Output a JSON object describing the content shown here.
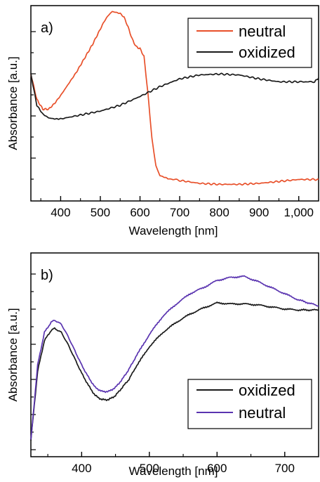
{
  "chart_data": [
    {
      "type": "line",
      "panel_label": "a)",
      "xlabel": "Wavelength [nm]",
      "ylabel": "Absorbance [a.u.]",
      "xlim": [
        325,
        1050
      ],
      "ylim": [
        0,
        1
      ],
      "x_ticks": [
        400,
        500,
        600,
        700,
        800,
        900,
        1000
      ],
      "x_tick_labels": [
        "400",
        "500",
        "600",
        "700",
        "800",
        "900",
        "1,000"
      ],
      "y_tick_labels_shown": false,
      "grid": false,
      "legend_position": "top-right",
      "series": [
        {
          "name": "neutral",
          "color": "#e8502a",
          "x": [
            325,
            340,
            355,
            370,
            385,
            400,
            420,
            440,
            460,
            480,
            500,
            510,
            520,
            530,
            540,
            550,
            560,
            570,
            580,
            590,
            600,
            610,
            620,
            630,
            640,
            650,
            670,
            700,
            750,
            800,
            850,
            900,
            950,
            1000,
            1050
          ],
          "y": [
            0.65,
            0.52,
            0.47,
            0.47,
            0.5,
            0.54,
            0.6,
            0.66,
            0.73,
            0.8,
            0.88,
            0.92,
            0.95,
            0.97,
            0.965,
            0.96,
            0.94,
            0.89,
            0.83,
            0.79,
            0.78,
            0.74,
            0.55,
            0.32,
            0.18,
            0.13,
            0.115,
            0.105,
            0.09,
            0.085,
            0.085,
            0.09,
            0.1,
            0.11,
            0.11
          ]
        },
        {
          "name": "oxidized",
          "color": "#1a1a1a",
          "x": [
            325,
            340,
            355,
            370,
            385,
            400,
            450,
            500,
            550,
            600,
            650,
            700,
            750,
            800,
            850,
            900,
            950,
            1000,
            1040,
            1050
          ],
          "y": [
            0.65,
            0.49,
            0.445,
            0.425,
            0.42,
            0.42,
            0.44,
            0.46,
            0.49,
            0.535,
            0.585,
            0.625,
            0.645,
            0.65,
            0.645,
            0.625,
            0.61,
            0.61,
            0.61,
            0.63
          ]
        }
      ]
    },
    {
      "type": "line",
      "panel_label": "b)",
      "xlabel": "Wavelength [nm]",
      "ylabel": "Absorbance [a.u.]",
      "xlim": [
        325,
        750
      ],
      "ylim": [
        0,
        1
      ],
      "x_ticks": [
        400,
        500,
        600,
        700
      ],
      "x_tick_labels": [
        "400",
        "500",
        "600",
        "700"
      ],
      "y_tick_labels_shown": false,
      "grid": false,
      "legend_position": "bottom-right",
      "series": [
        {
          "name": "oxidized",
          "color": "#1a1a1a",
          "x": [
            325,
            335,
            345,
            355,
            360,
            370,
            380,
            390,
            400,
            410,
            420,
            430,
            440,
            450,
            460,
            470,
            480,
            500,
            520,
            540,
            560,
            580,
            600,
            620,
            640,
            660,
            680,
            700,
            720,
            750
          ],
          "y": [
            0.08,
            0.42,
            0.57,
            0.62,
            0.63,
            0.61,
            0.55,
            0.48,
            0.41,
            0.35,
            0.3,
            0.28,
            0.28,
            0.3,
            0.34,
            0.38,
            0.44,
            0.54,
            0.61,
            0.66,
            0.7,
            0.73,
            0.755,
            0.75,
            0.75,
            0.745,
            0.735,
            0.725,
            0.72,
            0.72
          ]
        },
        {
          "name": "neutral",
          "color": "#5a34b0",
          "x": [
            325,
            335,
            345,
            355,
            360,
            370,
            380,
            390,
            400,
            410,
            420,
            430,
            440,
            450,
            460,
            470,
            480,
            500,
            520,
            540,
            560,
            580,
            600,
            620,
            640,
            660,
            680,
            700,
            720,
            750
          ],
          "y": [
            0.08,
            0.45,
            0.61,
            0.66,
            0.67,
            0.65,
            0.59,
            0.52,
            0.45,
            0.39,
            0.34,
            0.32,
            0.32,
            0.34,
            0.38,
            0.43,
            0.49,
            0.6,
            0.69,
            0.75,
            0.8,
            0.83,
            0.865,
            0.88,
            0.885,
            0.86,
            0.83,
            0.8,
            0.77,
            0.74
          ]
        }
      ]
    }
  ]
}
